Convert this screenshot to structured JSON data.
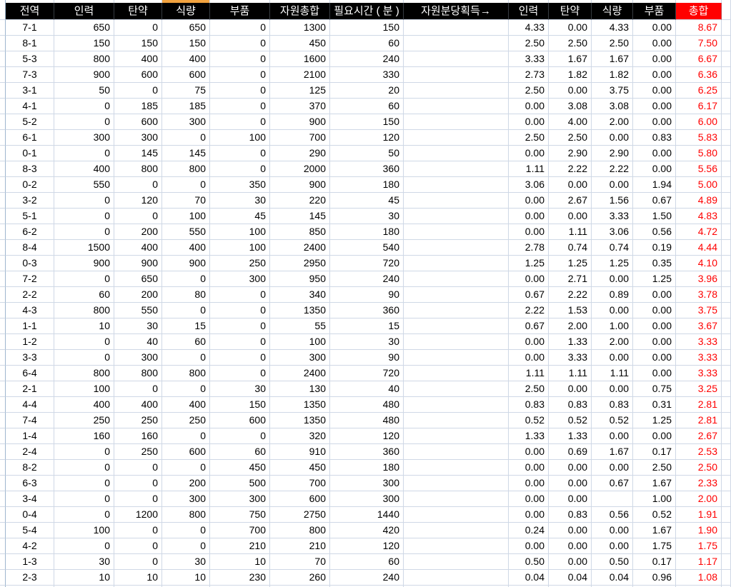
{
  "sheet": {
    "selected_column_index": 3,
    "selected_column_label": "식량",
    "columns": [
      {
        "key": "zone",
        "label": "전역",
        "align": "center"
      },
      {
        "key": "manpower",
        "label": "인력",
        "align": "right"
      },
      {
        "key": "ammo",
        "label": "탄약",
        "align": "right"
      },
      {
        "key": "food",
        "label": "식량",
        "align": "right"
      },
      {
        "key": "parts",
        "label": "부품",
        "align": "right"
      },
      {
        "key": "resource-total",
        "label": "자원총합",
        "align": "right"
      },
      {
        "key": "time-required",
        "label": "필요시간 ( 분 )",
        "align": "right"
      },
      {
        "key": "per-minute",
        "label": "자원분당획득→",
        "align": "center"
      },
      {
        "key": "pm-manpower",
        "label": "인력",
        "align": "right"
      },
      {
        "key": "pm-ammo",
        "label": "탄약",
        "align": "right"
      },
      {
        "key": "pm-food",
        "label": "식량",
        "align": "right"
      },
      {
        "key": "pm-parts",
        "label": "부품",
        "align": "right"
      },
      {
        "key": "pm-total",
        "label": "총합",
        "align": "right",
        "highlight": true
      }
    ],
    "rows": [
      [
        "7-1",
        "650",
        "0",
        "650",
        "0",
        "1300",
        "150",
        "",
        "4.33",
        "0.00",
        "4.33",
        "0.00",
        "8.67"
      ],
      [
        "8-1",
        "150",
        "150",
        "150",
        "0",
        "450",
        "60",
        "",
        "2.50",
        "2.50",
        "2.50",
        "0.00",
        "7.50"
      ],
      [
        "5-3",
        "800",
        "400",
        "400",
        "0",
        "1600",
        "240",
        "",
        "3.33",
        "1.67",
        "1.67",
        "0.00",
        "6.67"
      ],
      [
        "7-3",
        "900",
        "600",
        "600",
        "0",
        "2100",
        "330",
        "",
        "2.73",
        "1.82",
        "1.82",
        "0.00",
        "6.36"
      ],
      [
        "3-1",
        "50",
        "0",
        "75",
        "0",
        "125",
        "20",
        "",
        "2.50",
        "0.00",
        "3.75",
        "0.00",
        "6.25"
      ],
      [
        "4-1",
        "0",
        "185",
        "185",
        "0",
        "370",
        "60",
        "",
        "0.00",
        "3.08",
        "3.08",
        "0.00",
        "6.17"
      ],
      [
        "5-2",
        "0",
        "600",
        "300",
        "0",
        "900",
        "150",
        "",
        "0.00",
        "4.00",
        "2.00",
        "0.00",
        "6.00"
      ],
      [
        "6-1",
        "300",
        "300",
        "0",
        "100",
        "700",
        "120",
        "",
        "2.50",
        "2.50",
        "0.00",
        "0.83",
        "5.83"
      ],
      [
        "0-1",
        "0",
        "145",
        "145",
        "0",
        "290",
        "50",
        "",
        "0.00",
        "2.90",
        "2.90",
        "0.00",
        "5.80"
      ],
      [
        "8-3",
        "400",
        "800",
        "800",
        "0",
        "2000",
        "360",
        "",
        "1.11",
        "2.22",
        "2.22",
        "0.00",
        "5.56"
      ],
      [
        "0-2",
        "550",
        "0",
        "0",
        "350",
        "900",
        "180",
        "",
        "3.06",
        "0.00",
        "0.00",
        "1.94",
        "5.00"
      ],
      [
        "3-2",
        "0",
        "120",
        "70",
        "30",
        "220",
        "45",
        "",
        "0.00",
        "2.67",
        "1.56",
        "0.67",
        "4.89"
      ],
      [
        "5-1",
        "0",
        "0",
        "100",
        "45",
        "145",
        "30",
        "",
        "0.00",
        "0.00",
        "3.33",
        "1.50",
        "4.83"
      ],
      [
        "6-2",
        "0",
        "200",
        "550",
        "100",
        "850",
        "180",
        "",
        "0.00",
        "1.11",
        "3.06",
        "0.56",
        "4.72"
      ],
      [
        "8-4",
        "1500",
        "400",
        "400",
        "100",
        "2400",
        "540",
        "",
        "2.78",
        "0.74",
        "0.74",
        "0.19",
        "4.44"
      ],
      [
        "0-3",
        "900",
        "900",
        "900",
        "250",
        "2950",
        "720",
        "",
        "1.25",
        "1.25",
        "1.25",
        "0.35",
        "4.10"
      ],
      [
        "7-2",
        "0",
        "650",
        "0",
        "300",
        "950",
        "240",
        "",
        "0.00",
        "2.71",
        "0.00",
        "1.25",
        "3.96"
      ],
      [
        "2-2",
        "60",
        "200",
        "80",
        "0",
        "340",
        "90",
        "",
        "0.67",
        "2.22",
        "0.89",
        "0.00",
        "3.78"
      ],
      [
        "4-3",
        "800",
        "550",
        "0",
        "0",
        "1350",
        "360",
        "",
        "2.22",
        "1.53",
        "0.00",
        "0.00",
        "3.75"
      ],
      [
        "1-1",
        "10",
        "30",
        "15",
        "0",
        "55",
        "15",
        "",
        "0.67",
        "2.00",
        "1.00",
        "0.00",
        "3.67"
      ],
      [
        "1-2",
        "0",
        "40",
        "60",
        "0",
        "100",
        "30",
        "",
        "0.00",
        "1.33",
        "2.00",
        "0.00",
        "3.33"
      ],
      [
        "3-3",
        "0",
        "300",
        "0",
        "0",
        "300",
        "90",
        "",
        "0.00",
        "3.33",
        "0.00",
        "0.00",
        "3.33"
      ],
      [
        "6-4",
        "800",
        "800",
        "800",
        "0",
        "2400",
        "720",
        "",
        "1.11",
        "1.11",
        "1.11",
        "0.00",
        "3.33"
      ],
      [
        "2-1",
        "100",
        "0",
        "0",
        "30",
        "130",
        "40",
        "",
        "2.50",
        "0.00",
        "0.00",
        "0.75",
        "3.25"
      ],
      [
        "4-4",
        "400",
        "400",
        "400",
        "150",
        "1350",
        "480",
        "",
        "0.83",
        "0.83",
        "0.83",
        "0.31",
        "2.81"
      ],
      [
        "7-4",
        "250",
        "250",
        "250",
        "600",
        "1350",
        "480",
        "",
        "0.52",
        "0.52",
        "0.52",
        "1.25",
        "2.81"
      ],
      [
        "1-4",
        "160",
        "160",
        "0",
        "0",
        "320",
        "120",
        "",
        "1.33",
        "1.33",
        "0.00",
        "0.00",
        "2.67"
      ],
      [
        "2-4",
        "0",
        "250",
        "600",
        "60",
        "910",
        "360",
        "",
        "0.00",
        "0.69",
        "1.67",
        "0.17",
        "2.53"
      ],
      [
        "8-2",
        "0",
        "0",
        "0",
        "450",
        "450",
        "180",
        "",
        "0.00",
        "0.00",
        "0.00",
        "2.50",
        "2.50"
      ],
      [
        "6-3",
        "0",
        "0",
        "200",
        "500",
        "700",
        "300",
        "",
        "0.00",
        "0.00",
        "0.67",
        "1.67",
        "2.33"
      ],
      [
        "3-4",
        "0",
        "0",
        "300",
        "300",
        "600",
        "300",
        "",
        "0.00",
        "0.00",
        "",
        "1.00",
        "2.00"
      ],
      [
        "0-4",
        "0",
        "1200",
        "800",
        "750",
        "2750",
        "1440",
        "",
        "0.00",
        "0.83",
        "0.56",
        "0.52",
        "1.91"
      ],
      [
        "5-4",
        "100",
        "0",
        "0",
        "700",
        "800",
        "420",
        "",
        "0.24",
        "0.00",
        "0.00",
        "1.67",
        "1.90"
      ],
      [
        "4-2",
        "0",
        "0",
        "0",
        "210",
        "210",
        "120",
        "",
        "0.00",
        "0.00",
        "0.00",
        "1.75",
        "1.75"
      ],
      [
        "1-3",
        "30",
        "0",
        "30",
        "10",
        "70",
        "60",
        "",
        "0.50",
        "0.00",
        "0.50",
        "0.17",
        "1.17"
      ],
      [
        "2-3",
        "10",
        "10",
        "10",
        "230",
        "260",
        "240",
        "",
        "0.04",
        "0.04",
        "0.04",
        "0.96",
        "1.08"
      ]
    ]
  },
  "colors": {
    "header_bg": "#000000",
    "header_text": "#ffffff",
    "total_bg": "#ff0000",
    "total_text": "#ff0000",
    "select_indicator": "#f2a340",
    "grid_line": "#cfd8e6",
    "strip_border": "#9eb6ce"
  }
}
